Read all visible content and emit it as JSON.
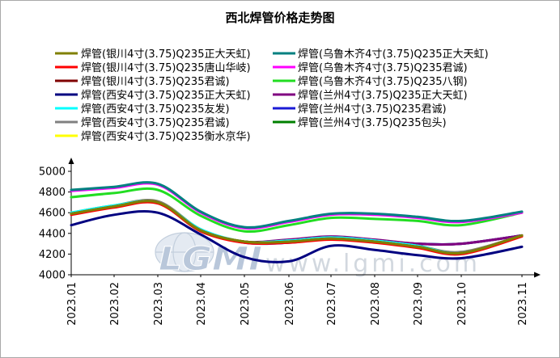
{
  "chart_data": {
    "type": "line",
    "title": "西北焊管价格走势图",
    "x": [
      "2023.01",
      "2023.02",
      "2023.03",
      "2023.04",
      "2023.05",
      "2023.06",
      "2023.07",
      "2023.08",
      "2023.09",
      "2023.10",
      "2023.11"
    ],
    "ylim": [
      4000,
      5000
    ],
    "yticks": [
      4000,
      4200,
      4400,
      4600,
      4800,
      5000
    ],
    "grid": false,
    "legend_position": "top",
    "series": [
      {
        "name": "焊管(银川4寸(3.75)Q235正大天虹)",
        "color": "#808000",
        "values": [
          4590,
          4660,
          4700,
          4430,
          4320,
          4320,
          4350,
          4320,
          4270,
          4210,
          4380
        ]
      },
      {
        "name": "焊管(银川4寸(3.75)Q235唐山华岐)",
        "color": "#ff0000",
        "values": [
          4580,
          4650,
          4690,
          4420,
          4310,
          4310,
          4340,
          4310,
          4260,
          4200,
          4370
        ]
      },
      {
        "name": "焊管(银川4寸(3.75)Q235君诚)",
        "color": "#800000",
        "values": [
          4590,
          4660,
          4700,
          4430,
          4320,
          4320,
          4350,
          4320,
          4270,
          4210,
          4380
        ]
      },
      {
        "name": "焊管(西安4寸(3.75)Q235正大天虹)",
        "color": "#000080",
        "values": [
          4480,
          4580,
          4600,
          4390,
          4170,
          4130,
          4280,
          4240,
          4190,
          4160,
          4270
        ]
      },
      {
        "name": "焊管(西安4寸(3.75)Q235友发)",
        "color": "#00ffff",
        "values": [
          4600,
          4670,
          4700,
          4440,
          4320,
          4330,
          4360,
          4330,
          4280,
          4210,
          4380
        ]
      },
      {
        "name": "焊管(西安4寸(3.75)Q235君诚)",
        "color": "#808080",
        "values": [
          4600,
          4670,
          4710,
          4440,
          4320,
          4330,
          4360,
          4330,
          4280,
          4220,
          4380
        ]
      },
      {
        "name": "焊管(西安4寸(3.75)Q235衡水京华)",
        "color": "#ffff00",
        "values": [
          4600,
          4670,
          4710,
          4440,
          4320,
          4330,
          4360,
          4330,
          4280,
          4220,
          4380
        ]
      },
      {
        "name": "焊管(乌鲁木齐4寸(3.75)Q235正大天虹)",
        "color": "#008080",
        "values": [
          4820,
          4850,
          4880,
          4610,
          4460,
          4520,
          4590,
          4590,
          4560,
          4520,
          4610
        ]
      },
      {
        "name": "焊管(乌鲁木齐4寸(3.75)Q235君诚)",
        "color": "#ff00ff",
        "values": [
          4810,
          4840,
          4870,
          4600,
          4450,
          4510,
          4580,
          4580,
          4550,
          4510,
          4600
        ]
      },
      {
        "name": "焊管(乌鲁木齐4寸(3.75)Q235八钢)",
        "color": "#22dd22",
        "values": [
          4750,
          4790,
          4820,
          4570,
          4420,
          4480,
          4550,
          4540,
          4520,
          4480,
          4600
        ]
      },
      {
        "name": "焊管(兰州4寸(3.75)Q235正大天虹)",
        "color": "#800080",
        "values": [
          4590,
          4660,
          4700,
          4430,
          4320,
          4340,
          4370,
          4340,
          4300,
          4300,
          4380
        ]
      },
      {
        "name": "焊管(兰州4寸(3.75)Q235君诚)",
        "color": "#1a1ad6",
        "values": [
          4590,
          4660,
          4700,
          4430,
          4310,
          4310,
          4350,
          4330,
          4300,
          4300,
          4380
        ]
      },
      {
        "name": "焊管(兰州4寸(3.75)Q235包头)",
        "color": "#008000",
        "values": [
          4590,
          4660,
          4700,
          4430,
          4320,
          4330,
          4360,
          4330,
          4300,
          4300,
          4380
        ]
      }
    ]
  },
  "watermark": {
    "logo": "LGMI",
    "url": "www.lgmi.com"
  }
}
